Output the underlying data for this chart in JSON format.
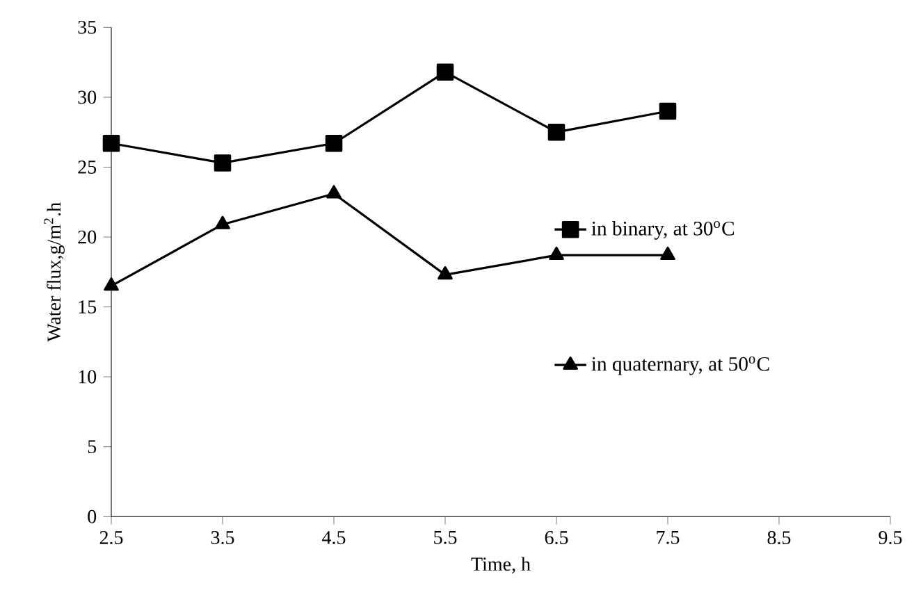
{
  "chart_data": {
    "type": "line",
    "xlabel": "Time, h",
    "ylabel": "Water flux,g/m$^{2}$.h",
    "x": [
      2.5,
      3.5,
      4.5,
      5.5,
      6.5,
      7.5
    ],
    "series": [
      {
        "name": "in binary, at 30$^{o}$C",
        "color": "#000000",
        "marker": "square",
        "values": [
          26.7,
          25.3,
          26.7,
          31.8,
          27.5,
          29.0
        ]
      },
      {
        "name": "in quaternary, at 50$^{o}$C",
        "color": "#000000",
        "marker": "triangle",
        "values": [
          16.5,
          20.9,
          23.1,
          17.3,
          18.7,
          18.7
        ]
      }
    ],
    "xlim": [
      2.5,
      9.5
    ],
    "xticks": [
      2.5,
      3.5,
      4.5,
      5.5,
      6.5,
      7.5,
      8.5,
      9.5
    ],
    "ylim": [
      0,
      35
    ],
    "yticks": [
      0,
      5,
      10,
      15,
      20,
      25,
      30,
      35
    ],
    "grid": false,
    "legend": "right",
    "line_style": "solid"
  }
}
